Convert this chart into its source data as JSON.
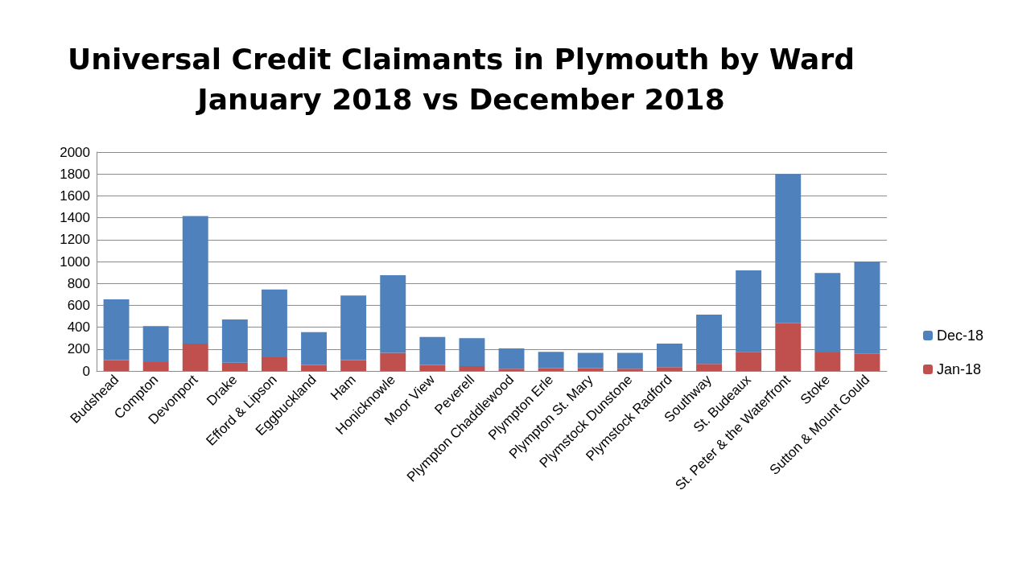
{
  "chart_data": {
    "type": "bar",
    "title": "Universal Credit Claimants in Plymouth by Ward\nJanuary 2018 vs December 2018",
    "stacked": true,
    "legend": "right",
    "grid": "y",
    "categories": [
      "Budshead",
      "Compton",
      "Devonport",
      "Drake",
      "Efford & Lipson",
      "Eggbuckland",
      "Ham",
      "Honicknowle",
      "Moor View",
      "Peverell",
      "Plympton Chaddlewood",
      "Plympton Erle",
      "Plympton St. Mary",
      "Plymstock Dunstone",
      "Plymstock Radford",
      "Southway",
      "St. Budeaux",
      "St. Peter & the Waterfront",
      "Stoke",
      "Sutton & Mount Gould"
    ],
    "series": [
      {
        "name": "Jan-18",
        "color": "#c0504d",
        "values": [
          100,
          80,
          250,
          75,
          125,
          55,
          100,
          165,
          55,
          45,
          20,
          25,
          25,
          20,
          35,
          65,
          175,
          435,
          170,
          160
        ]
      },
      {
        "name": "Dec-18",
        "color": "#4f81bd",
        "values": [
          555,
          330,
          1165,
          395,
          620,
          300,
          590,
          710,
          255,
          255,
          185,
          150,
          140,
          145,
          215,
          450,
          745,
          1365,
          725,
          840
        ]
      }
    ],
    "ylim": [
      0,
      2000
    ],
    "yticks": [
      0,
      200,
      400,
      600,
      800,
      1000,
      1200,
      1400,
      1600,
      1800,
      2000
    ]
  }
}
